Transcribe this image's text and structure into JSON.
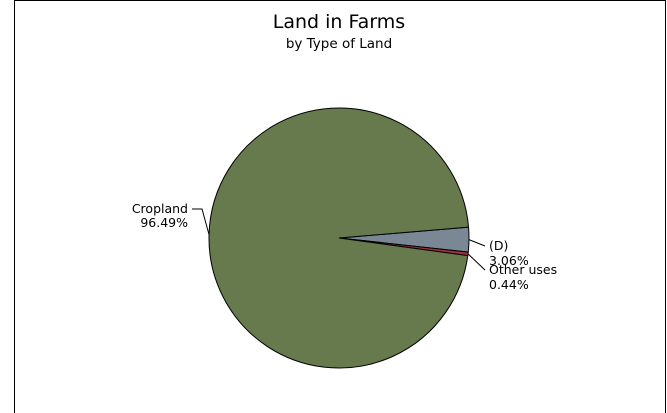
{
  "chart_data": {
    "type": "pie",
    "title": "Land in Farms",
    "subtitle": "by Type of Land",
    "slices": [
      {
        "label": "(D)",
        "value": 3.06,
        "value_label": "3.06%",
        "color": "#7a8896"
      },
      {
        "label": "Other uses",
        "value": 0.44,
        "value_label": "0.44%",
        "color": "#a0303c"
      },
      {
        "label": "Cropland",
        "value": 96.49,
        "value_label": "96.49%",
        "color": "#667a4e"
      }
    ]
  }
}
